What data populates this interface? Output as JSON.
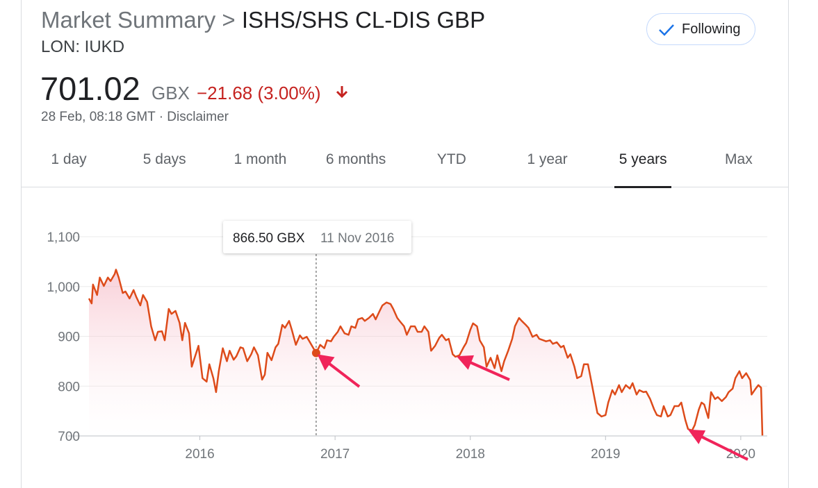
{
  "header": {
    "breadcrumb": "Market Summary >",
    "title": "ISHS/SHS CL-DIS GBP",
    "exchange": "LON: IUKD",
    "follow_button": "Following"
  },
  "quote": {
    "price": "701.02",
    "currency": "GBX",
    "change": "−21.68 (3.00%)",
    "timestamp": "28 Feb, 08:18 GMT",
    "separator": "·",
    "disclaimer": "Disclaimer"
  },
  "tabs": {
    "items": [
      "1 day",
      "5 days",
      "1 month",
      "6 months",
      "YTD",
      "1 year",
      "5 years",
      "Max"
    ],
    "selected": "5 years"
  },
  "chart_data": {
    "type": "line",
    "color": "#dd4b1a",
    "grid": true,
    "xlim": [
      2015.18,
      2020.16
    ],
    "xticks": [
      2016,
      2017,
      2018,
      2019,
      2020
    ],
    "ylim": [
      700,
      1100
    ],
    "yticks": [
      700,
      800,
      900,
      {
        "value": 1000,
        "label": "1,000"
      },
      {
        "value": 1100,
        "label": "1,100"
      }
    ],
    "tooltip": {
      "x": 2016.86,
      "value": 866.5,
      "value_label": "866.50 GBX",
      "date_label": "11 Nov 2016"
    },
    "x": [
      2015.18,
      2015.2,
      2015.21,
      2015.24,
      2015.26,
      2015.29,
      2015.32,
      2015.34,
      2015.37,
      2015.38,
      2015.4,
      2015.43,
      2015.45,
      2015.48,
      2015.51,
      2015.53,
      2015.56,
      2015.58,
      2015.61,
      2015.64,
      2015.67,
      2015.69,
      2015.72,
      2015.74,
      2015.77,
      2015.79,
      2015.82,
      2015.85,
      2015.87,
      2015.89,
      2015.92,
      2015.94,
      2015.97,
      2015.99,
      2016.02,
      2016.05,
      2016.07,
      2016.1,
      2016.12,
      2016.14,
      2016.17,
      2016.2,
      2016.22,
      2016.25,
      2016.27,
      2016.3,
      2016.32,
      2016.35,
      2016.38,
      2016.4,
      2016.43,
      2016.46,
      2016.48,
      2016.5,
      2016.53,
      2016.56,
      2016.58,
      2016.61,
      2016.63,
      2016.66,
      2016.68,
      2016.71,
      2016.74,
      2016.76,
      2016.79,
      2016.81,
      2016.84,
      2016.86,
      2016.89,
      2016.92,
      2016.94,
      2016.97,
      2016.99,
      2017.02,
      2017.04,
      2017.07,
      2017.1,
      2017.12,
      2017.15,
      2017.17,
      2017.2,
      2017.22,
      2017.25,
      2017.28,
      2017.3,
      2017.33,
      2017.35,
      2017.38,
      2017.41,
      2017.43,
      2017.46,
      2017.48,
      2017.51,
      2017.53,
      2017.56,
      2017.59,
      2017.61,
      2017.64,
      2017.66,
      2017.69,
      2017.71,
      2017.74,
      2017.77,
      2017.79,
      2017.82,
      2017.84,
      2017.87,
      2017.89,
      2017.92,
      2017.95,
      2017.97,
      2018.0,
      2018.02,
      2018.05,
      2018.07,
      2018.1,
      2018.12,
      2018.15,
      2018.18,
      2018.2,
      2018.23,
      2018.25,
      2018.28,
      2018.31,
      2018.33,
      2018.36,
      2018.38,
      2018.41,
      2018.43,
      2018.46,
      2018.49,
      2018.51,
      2018.54,
      2018.56,
      2018.59,
      2018.61,
      2018.64,
      2018.67,
      2018.69,
      2018.72,
      2018.74,
      2018.77,
      2018.79,
      2018.82,
      2018.84,
      2018.87,
      2018.89,
      2018.92,
      2018.94,
      2018.97,
      2019.0,
      2019.02,
      2019.05,
      2019.07,
      2019.1,
      2019.12,
      2019.15,
      2019.18,
      2019.2,
      2019.23,
      2019.25,
      2019.28,
      2019.3,
      2019.33,
      2019.36,
      2019.38,
      2019.41,
      2019.43,
      2019.46,
      2019.48,
      2019.51,
      2019.54,
      2019.56,
      2019.59,
      2019.61,
      2019.64,
      2019.66,
      2019.69,
      2019.71,
      2019.73,
      2019.76,
      2019.78,
      2019.81,
      2019.83,
      2019.86,
      2019.89,
      2019.91,
      2019.94,
      2019.96,
      2019.99,
      2020.01,
      2020.04,
      2020.07,
      2020.08,
      2020.11,
      2020.13,
      2020.15,
      2020.16
    ],
    "values": [
      976,
      966,
      1004,
      983,
      1018,
      1001,
      1018,
      1011,
      1025,
      1034,
      1018,
      987,
      990,
      976,
      993,
      979,
      962,
      983,
      969,
      920,
      892,
      909,
      910,
      892,
      955,
      945,
      951,
      927,
      892,
      927,
      906,
      839,
      864,
      881,
      816,
      809,
      844,
      816,
      788,
      830,
      876,
      850,
      871,
      853,
      860,
      878,
      876,
      850,
      864,
      878,
      862,
      813,
      823,
      867,
      852,
      878,
      885,
      923,
      917,
      931,
      913,
      883,
      902,
      895,
      899,
      890,
      876,
      866.5,
      883,
      876,
      892,
      890,
      899,
      909,
      920,
      906,
      903,
      920,
      917,
      934,
      937,
      931,
      937,
      945,
      934,
      951,
      962,
      968,
      965,
      955,
      937,
      930,
      920,
      903,
      920,
      920,
      909,
      909,
      920,
      909,
      871,
      881,
      897,
      903,
      892,
      895,
      864,
      859,
      862,
      878,
      887,
      913,
      926,
      920,
      892,
      878,
      839,
      857,
      836,
      862,
      830,
      850,
      871,
      895,
      920,
      937,
      931,
      923,
      917,
      899,
      903,
      895,
      892,
      890,
      892,
      885,
      888,
      878,
      881,
      857,
      864,
      839,
      816,
      820,
      844,
      844,
      816,
      774,
      746,
      739,
      742,
      767,
      792,
      783,
      802,
      788,
      802,
      795,
      806,
      783,
      792,
      788,
      789,
      774,
      753,
      742,
      739,
      760,
      739,
      742,
      760,
      760,
      767,
      732,
      714,
      711,
      722,
      753,
      767,
      763,
      736,
      788,
      774,
      778,
      770,
      778,
      788,
      795,
      816,
      830,
      816,
      826,
      812,
      783,
      795,
      802,
      797,
      701
    ]
  }
}
